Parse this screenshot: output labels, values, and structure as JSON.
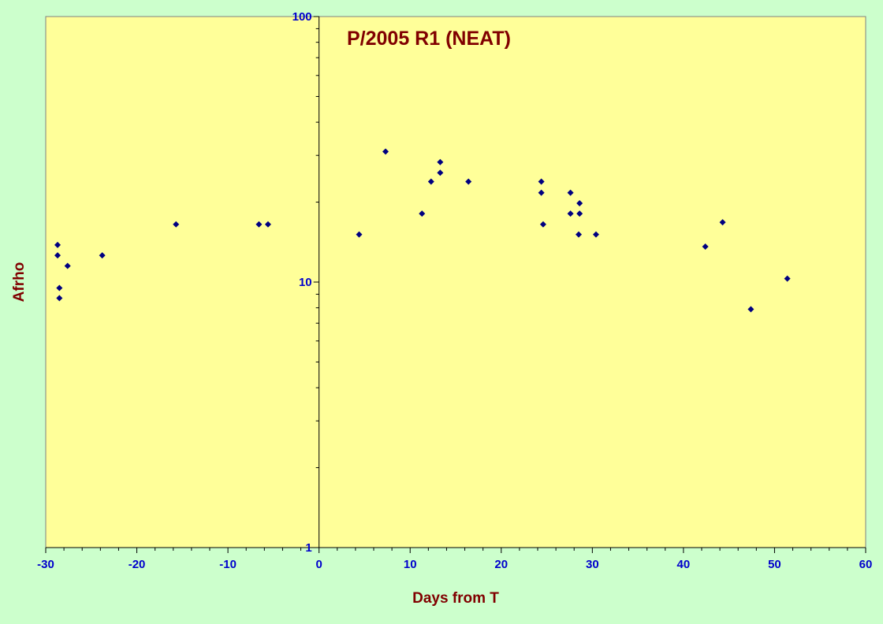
{
  "chart_data": {
    "type": "scatter",
    "title": "P/2005 R1 (NEAT)",
    "xlabel": "Days from T",
    "ylabel": "Afrho",
    "xlim": [
      -30,
      60
    ],
    "ylim": [
      1,
      100
    ],
    "yscale": "log",
    "x_ticks": [
      -30,
      -20,
      -10,
      0,
      10,
      20,
      30,
      40,
      50,
      60
    ],
    "y_ticks": [
      1,
      10,
      100
    ],
    "grid": false,
    "colors": {
      "background": "#ccffcc",
      "plot_area": "#ffff99",
      "marker": "#000080",
      "tick_labels": "#0000cc",
      "titles": "#800000"
    },
    "series": [
      {
        "points": [
          [
            -28.7,
            13.8
          ],
          [
            -28.7,
            12.6
          ],
          [
            -28.5,
            9.5
          ],
          [
            -28.5,
            8.7
          ],
          [
            -27.6,
            11.5
          ],
          [
            -23.8,
            12.6
          ],
          [
            -15.7,
            16.5
          ],
          [
            -6.6,
            16.5
          ],
          [
            -5.6,
            16.5
          ],
          [
            4.4,
            15.1
          ],
          [
            7.3,
            31.0
          ],
          [
            11.3,
            18.1
          ],
          [
            12.3,
            23.9
          ],
          [
            13.3,
            28.3
          ],
          [
            13.3,
            25.8
          ],
          [
            16.4,
            23.9
          ],
          [
            24.4,
            23.9
          ],
          [
            24.4,
            21.7
          ],
          [
            24.6,
            16.5
          ],
          [
            27.6,
            21.7
          ],
          [
            27.6,
            18.1
          ],
          [
            28.6,
            19.8
          ],
          [
            28.6,
            18.1
          ],
          [
            28.5,
            15.1
          ],
          [
            30.4,
            15.1
          ],
          [
            42.4,
            13.6
          ],
          [
            44.3,
            16.8
          ],
          [
            47.4,
            7.9
          ],
          [
            51.4,
            10.3
          ]
        ]
      }
    ]
  }
}
